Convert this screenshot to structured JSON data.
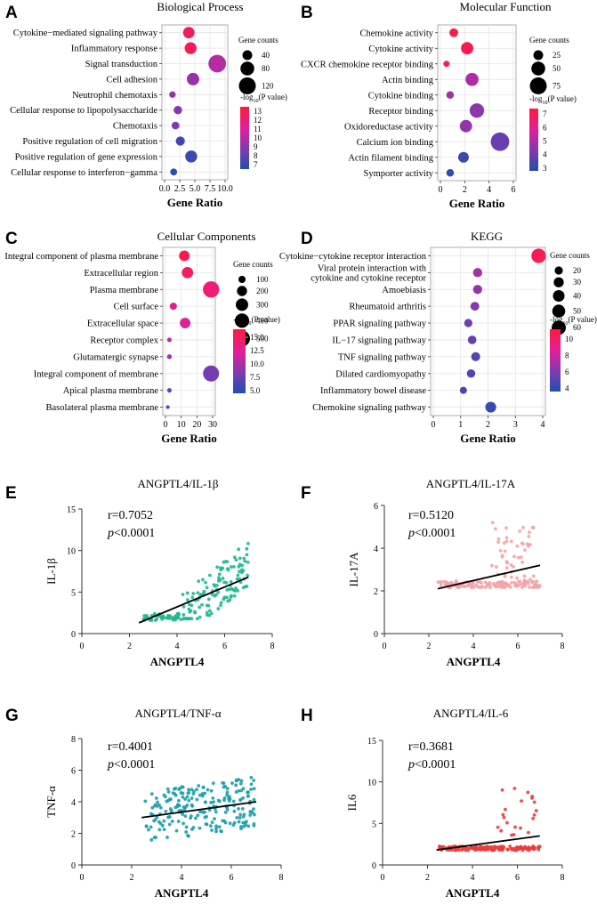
{
  "chart_data": [
    {
      "type": "scatter",
      "panel_label": "A",
      "title": "Biological Process",
      "xlabel": "Gene Ratio",
      "xlim": [
        0,
        10
      ],
      "xticks": [
        "0.0",
        "2.5",
        "5.0",
        "7.5",
        "10.0"
      ],
      "terms": [
        "Cytokine−mediated signaling pathway",
        "Inflammatory response",
        "Signal transduction",
        "Cell adhesion",
        "Neutrophil chemotaxis",
        "Cellular response to lipopolysaccharide",
        "Chemotaxis",
        "Positive regulation of cell migration",
        "Positive regulation of gene expression",
        "Cellular response to interferon−gamma"
      ],
      "gene_ratio": [
        4.0,
        4.3,
        8.7,
        4.7,
        1.3,
        2.2,
        1.8,
        2.6,
        4.4,
        1.5
      ],
      "gene_counts": [
        55,
        60,
        130,
        65,
        18,
        30,
        25,
        35,
        60,
        20
      ],
      "neg_log10_p": [
        12.5,
        12.8,
        10.0,
        9.3,
        9.5,
        9.0,
        8.7,
        7.3,
        7.2,
        6.8
      ],
      "size_legend_title": "Gene counts",
      "size_legend": [
        40,
        80,
        120
      ],
      "color_legend_title": "-log10(P value)",
      "color_ticks": [
        13,
        12,
        11,
        10,
        9,
        8,
        7
      ],
      "color_range": [
        6.5,
        13.5
      ]
    },
    {
      "type": "scatter",
      "panel_label": "B",
      "title": "Molecular Function",
      "xlabel": "Gene Ratio",
      "xlim": [
        0,
        6
      ],
      "xticks": [
        "0",
        "2",
        "4",
        "6"
      ],
      "terms": [
        "Chemokine activity",
        "Cytokine activity",
        "CXCR chemokine receptor binding",
        "Actin binding",
        "Cytokine binding",
        "Receptor binding",
        "Oxidoreductase activity",
        "Calcium ion binding",
        "Actin filament binding",
        "Symporter activity"
      ],
      "gene_ratio": [
        1.1,
        2.2,
        0.5,
        2.6,
        0.8,
        3.0,
        2.1,
        4.9,
        1.9,
        0.8
      ],
      "gene_counts": [
        20,
        40,
        10,
        45,
        15,
        55,
        40,
        90,
        30,
        15
      ],
      "neg_log10_p": [
        7.2,
        7.0,
        6.6,
        5.0,
        4.8,
        4.5,
        4.6,
        3.9,
        3.2,
        3.0
      ],
      "size_legend_title": "Gene counts",
      "size_legend": [
        25,
        50,
        75
      ],
      "color_legend_title": "-log10(P value)",
      "color_ticks": [
        7,
        6,
        5,
        4,
        3
      ],
      "color_range": [
        2.8,
        7.4
      ]
    },
    {
      "type": "scatter",
      "panel_label": "C",
      "title": "Cellular Components",
      "xlabel": "Gene Ratio",
      "xlim": [
        0,
        30
      ],
      "xticks": [
        "0",
        "10",
        "20",
        "30"
      ],
      "terms": [
        "Integral component of plasma membrane",
        "Extracellular region",
        "Plasma membrane",
        "Cell surface",
        "Extracellular space",
        "Receptor complex",
        "Glutamatergic synapse",
        "Integral component of membrane",
        "Apical plasma membrane",
        "Basolateral plasma membrane"
      ],
      "gene_ratio": [
        12.0,
        14.0,
        29.0,
        5.0,
        12.5,
        2.5,
        2.5,
        29.0,
        2.5,
        1.5
      ],
      "gene_counts": [
        220,
        250,
        520,
        100,
        220,
        40,
        45,
        500,
        40,
        25
      ],
      "neg_log10_p": [
        15.5,
        15.0,
        14.0,
        13.0,
        12.5,
        11.0,
        10.0,
        8.0,
        7.0,
        6.0
      ],
      "size_legend_title": "Gene counts",
      "size_legend": [
        100,
        200,
        300,
        400,
        500
      ],
      "color_legend_title": "-log10(P value)",
      "color_ticks": [
        "15.0",
        "12.5",
        "10.0",
        "7.5",
        "5.0"
      ],
      "color_range": [
        4.5,
        16.5
      ]
    },
    {
      "type": "scatter",
      "panel_label": "D",
      "title": "KEGG",
      "xlabel": "Gene Ratio",
      "xlim": [
        0,
        4
      ],
      "xticks": [
        "0",
        "1",
        "2",
        "3",
        "4"
      ],
      "terms": [
        "Cytokine−cytokine receptor interaction",
        "Viral protein interaction with cytokine and cytokine receptor",
        "Amoebiasis",
        "Rheumatoid arthritis",
        "PPAR signaling pathway",
        "IL−17 signaling pathway",
        "TNF signaling pathway",
        "Dilated cardiomyopathy",
        "Inflammatory bowel disease",
        "Chemokine signaling pathway"
      ],
      "gene_ratio": [
        3.85,
        1.62,
        1.62,
        1.52,
        1.28,
        1.42,
        1.55,
        1.38,
        1.1,
        2.1
      ],
      "gene_counts": [
        62,
        25,
        25,
        23,
        20,
        22,
        24,
        21,
        15,
        35
      ],
      "neg_log10_p": [
        10.5,
        7.0,
        6.6,
        6.3,
        5.6,
        5.5,
        5.0,
        4.8,
        4.6,
        4.2
      ],
      "size_legend_title": "Gene counts",
      "size_legend": [
        20,
        30,
        40,
        50,
        60
      ],
      "color_legend_title": "-log10(P value)",
      "color_ticks": [
        10,
        8,
        6,
        4
      ],
      "color_range": [
        3.6,
        11.2
      ]
    },
    {
      "type": "scatter",
      "panel_label": "E",
      "title": "ANGPTL4/IL-1β",
      "xlabel": "ANGPTL4",
      "ylabel": "IL-1β",
      "xlim": [
        0,
        8
      ],
      "ylim": [
        0,
        15
      ],
      "xticks": [
        0,
        2,
        4,
        6,
        8
      ],
      "yticks": [
        0,
        5,
        10,
        15
      ],
      "r": "r=0.7052",
      "p": "<0.0001",
      "color": "#1fb88f",
      "fit": [
        [
          2.4,
          1.3
        ],
        [
          7.0,
          6.8
        ]
      ],
      "n_points": 170,
      "seed": 11
    },
    {
      "type": "scatter",
      "panel_label": "F",
      "title": "ANGPTL4/IL-17A",
      "xlabel": "ANGPTL4",
      "ylabel": "IL-17A",
      "xlim": [
        0,
        8
      ],
      "ylim": [
        0,
        6
      ],
      "xticks": [
        0,
        2,
        4,
        6,
        8
      ],
      "yticks": [
        0,
        2,
        4,
        6
      ],
      "r": "r=0.5120",
      "p": "<0.0001",
      "color": "#f4a3a6",
      "fit": [
        [
          2.4,
          2.1
        ],
        [
          7.0,
          3.2
        ]
      ],
      "n_points": 170,
      "seed": 23
    },
    {
      "type": "scatter",
      "panel_label": "G",
      "title": "ANGPTL4/TNF-α",
      "xlabel": "ANGPTL4",
      "ylabel": "TNF-α",
      "xlim": [
        0,
        8
      ],
      "ylim": [
        0,
        8
      ],
      "xticks": [
        0,
        2,
        4,
        6,
        8
      ],
      "yticks": [
        0,
        2,
        4,
        6,
        8
      ],
      "r": "r=0.4001",
      "p": "<0.0001",
      "color": "#1a9fa8",
      "fit": [
        [
          2.4,
          3.0
        ],
        [
          7.0,
          4.0
        ]
      ],
      "n_points": 220,
      "seed": 37
    },
    {
      "type": "scatter",
      "panel_label": "H",
      "title": "ANGPTL4/IL-6",
      "xlabel": "ANGPTL4",
      "ylabel": "IL6",
      "xlim": [
        0,
        8
      ],
      "ylim": [
        0,
        15
      ],
      "xticks": [
        0,
        2,
        4,
        6,
        8
      ],
      "yticks": [
        0,
        5,
        10,
        15
      ],
      "r": "r=0.3681",
      "p": "<0.0001",
      "color": "#ee3b3b",
      "fit": [
        [
          2.4,
          1.8
        ],
        [
          7.0,
          3.5
        ]
      ],
      "n_points": 170,
      "seed": 51
    }
  ],
  "labels": {
    "p_prefix": "p"
  }
}
